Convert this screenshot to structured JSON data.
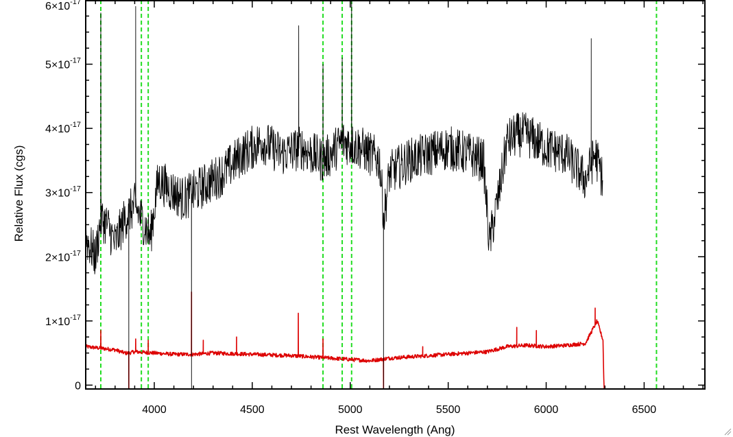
{
  "chart_data": {
    "type": "line",
    "title": "",
    "xlabel": "Rest Wavelength (Ang)",
    "ylabel": "Relative Flux (cgs)",
    "xlim": [
      3650,
      6810
    ],
    "ylim": [
      -0.06,
      6.0
    ],
    "y_unit_exponent": -17,
    "x_ticks": [
      4000,
      4500,
      5000,
      5500,
      6000,
      6500
    ],
    "x_tick_labels": [
      "4000",
      "4500",
      "5000",
      "5500",
      "6000",
      "6500"
    ],
    "y_ticks": [
      0,
      1,
      2,
      3,
      4,
      5,
      6
    ],
    "y_tick_labels": [
      {
        "mantissa": "0",
        "exp": ""
      },
      {
        "mantissa": "1×10",
        "exp": "-17"
      },
      {
        "mantissa": "2×10",
        "exp": "-17"
      },
      {
        "mantissa": "3×10",
        "exp": "-17"
      },
      {
        "mantissa": "4×10",
        "exp": "-17"
      },
      {
        "mantissa": "5×10",
        "exp": "-17"
      },
      {
        "mantissa": "6×10",
        "exp": "-17"
      }
    ],
    "grid": false,
    "vlines": {
      "color": "#22dd22",
      "style": "dashed",
      "x": [
        3727,
        3934,
        3969,
        4861,
        4959,
        5007,
        6563
      ]
    },
    "series": [
      {
        "color": "#000000",
        "noise": 0.35,
        "x": [
          3650,
          3700,
          3727,
          3760,
          3800,
          3850,
          3900,
          3950,
          3980,
          4020,
          4100,
          4150,
          4250,
          4350,
          4450,
          4550,
          4650,
          4750,
          4861,
          4900,
          4960,
          5050,
          5150,
          5172,
          5200,
          5300,
          5400,
          5500,
          5600,
          5680,
          5710,
          5760,
          5800,
          5850,
          5900,
          5950,
          6000,
          6100,
          6200,
          6250,
          6290
        ],
        "y": [
          2.3,
          2.0,
          2.6,
          2.5,
          2.2,
          2.6,
          2.8,
          2.5,
          2.3,
          3.2,
          3.0,
          2.9,
          3.1,
          3.3,
          3.6,
          3.8,
          3.6,
          3.7,
          3.5,
          3.6,
          3.8,
          3.7,
          3.5,
          2.6,
          3.3,
          3.5,
          3.6,
          3.7,
          3.6,
          3.5,
          2.2,
          3.0,
          3.8,
          3.9,
          3.9,
          3.8,
          3.7,
          3.6,
          3.2,
          3.6,
          3.2
        ],
        "spikes": [
          {
            "x": 3727,
            "y": 5.8
          },
          {
            "x": 3870,
            "y": -0.06
          },
          {
            "x": 3905,
            "y": 5.9
          },
          {
            "x": 4190,
            "y": -0.06
          },
          {
            "x": 4737,
            "y": 5.6
          },
          {
            "x": 4861,
            "y": 5.0
          },
          {
            "x": 4959,
            "y": 5.1
          },
          {
            "x": 5007,
            "y": 6.0
          },
          {
            "x": 5170,
            "y": -0.06
          },
          {
            "x": 6230,
            "y": 5.4
          }
        ]
      },
      {
        "color": "#dd0000",
        "noise": 0.03,
        "x": [
          3650,
          3800,
          3850,
          3870,
          3900,
          4000,
          4100,
          4200,
          4300,
          4500,
          4700,
          4900,
          5000,
          5100,
          5200,
          5400,
          5600,
          5700,
          5800,
          5900,
          6000,
          6100,
          6200,
          6260,
          6290,
          6295,
          6810
        ],
        "y": [
          0.6,
          0.55,
          0.5,
          0.5,
          0.52,
          0.5,
          0.48,
          0.48,
          0.5,
          0.48,
          0.46,
          0.42,
          0.4,
          0.38,
          0.42,
          0.46,
          0.5,
          0.52,
          0.6,
          0.62,
          0.6,
          0.62,
          0.65,
          1.0,
          0.7,
          -0.06,
          -0.06
        ],
        "spikes": [
          {
            "x": 3727,
            "y": 0.85
          },
          {
            "x": 3870,
            "y": -0.06
          },
          {
            "x": 3905,
            "y": 0.72
          },
          {
            "x": 3969,
            "y": 0.7
          },
          {
            "x": 4190,
            "y": 1.45
          },
          {
            "x": 4250,
            "y": 0.7
          },
          {
            "x": 4420,
            "y": 0.75
          },
          {
            "x": 4735,
            "y": 1.12
          },
          {
            "x": 4861,
            "y": 0.72
          },
          {
            "x": 5170,
            "y": -0.06
          },
          {
            "x": 5370,
            "y": 0.6
          },
          {
            "x": 5850,
            "y": 0.9
          },
          {
            "x": 5950,
            "y": 0.85
          },
          {
            "x": 6250,
            "y": 1.2
          }
        ]
      }
    ]
  }
}
